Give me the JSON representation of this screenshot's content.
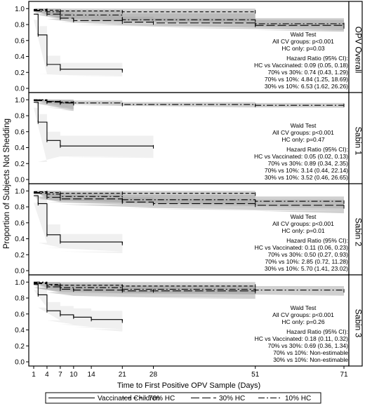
{
  "chart_data": [
    {
      "type": "line",
      "strip_label": "OPV Overall",
      "wald_text": [
        "Wald Test",
        "All CV groups: p<0.001",
        "HC only: p=0.03"
      ],
      "hr_text": [
        "Hazard Ratio (95% CI):",
        "HC vs Vaccinated: 0.09 (0.05, 0.18)",
        "70% vs 30%: 0.74 (0.43, 1.29)",
        "70% vs 10%: 4.84 (1.25, 18.69)",
        "30% vs 10%: 6.53 (1.62, 26.26)"
      ],
      "series": [
        {
          "name": "Vaccinated Children",
          "style": "solid",
          "x": [
            1,
            2,
            4,
            7,
            21
          ],
          "y": [
            0.93,
            0.67,
            0.3,
            0.24,
            0.22
          ],
          "band_lower": [
            0.86,
            0.18,
            0.17,
            0.16,
            0.15
          ],
          "band_upper": [
            0.99,
            0.78,
            0.41,
            0.32,
            0.28
          ]
        },
        {
          "name": "70% HC",
          "style": "dash",
          "x": [
            1,
            4,
            7,
            21,
            51
          ],
          "y": [
            0.99,
            0.98,
            0.97,
            0.96,
            0.96
          ],
          "band_lower": [
            0.97,
            0.88,
            0.86,
            0.84,
            0.83
          ],
          "band_upper": [
            1.0,
            1.0,
            1.0,
            1.0,
            1.0
          ]
        },
        {
          "name": "30% HC",
          "style": "longdash",
          "x": [
            1,
            4,
            7,
            10,
            21,
            28,
            51,
            71
          ],
          "y": [
            0.97,
            0.93,
            0.88,
            0.85,
            0.83,
            0.82,
            0.79,
            0.77
          ],
          "band_lower": [
            0.93,
            0.87,
            0.83,
            0.8,
            0.78,
            0.76,
            0.73,
            0.71
          ],
          "band_upper": [
            1.0,
            0.98,
            0.95,
            0.92,
            0.9,
            0.88,
            0.86,
            0.84
          ]
        },
        {
          "name": "10% HC",
          "style": "dashdot",
          "x": [
            1,
            4,
            7,
            21,
            51,
            71
          ],
          "y": [
            0.98,
            0.96,
            0.92,
            0.86,
            0.81,
            0.8
          ],
          "band_lower": [
            0.96,
            0.88,
            0.86,
            0.8,
            0.75,
            0.73
          ],
          "band_upper": [
            1.0,
            1.0,
            0.98,
            0.94,
            0.88,
            0.86
          ]
        }
      ]
    },
    {
      "type": "line",
      "strip_label": "Sabin 1",
      "wald_text": [
        "Wald Test",
        "All CV groups: p<0.001",
        "HC only: p=0.47"
      ],
      "hr_text": [
        "Hazard Ratio (95% CI):",
        "HC vs Vaccinated: 0.05 (0.02, 0.13)",
        "70% vs 30%: 0.89 (0.34, 2.35)",
        "70% vs 10%: 3.14 (0.44, 22.14)",
        "30% vs 10%: 3.52 (0.46, 26.65)"
      ],
      "series": [
        {
          "name": "Vaccinated Children",
          "style": "solid",
          "x": [
            1,
            2,
            4,
            7,
            28
          ],
          "y": [
            0.97,
            0.72,
            0.49,
            0.42,
            0.41
          ],
          "band_lower": [
            0.9,
            0.22,
            0.29,
            0.28,
            0.27
          ],
          "band_upper": [
            1.0,
            0.82,
            0.6,
            0.55,
            0.52
          ]
        },
        {
          "name": "70% HC",
          "style": "dash",
          "x": [
            1,
            4,
            7,
            10
          ],
          "y": [
            1.0,
            0.98,
            0.97,
            0.96
          ],
          "band_lower": [
            0.98,
            0.92,
            0.9,
            0.88
          ],
          "band_upper": [
            1.0,
            1.0,
            1.0,
            1.0
          ]
        },
        {
          "name": "30% HC",
          "style": "longdash",
          "x": [
            1,
            4,
            7,
            10
          ],
          "y": [
            0.99,
            0.97,
            0.96,
            0.95
          ],
          "band_lower": [
            0.96,
            0.9,
            0.88,
            0.86
          ],
          "band_upper": [
            1.0,
            1.0,
            1.0,
            1.0
          ]
        },
        {
          "name": "10% HC",
          "style": "dashdot",
          "x": [
            1,
            4,
            7,
            21,
            51,
            71
          ],
          "y": [
            1.0,
            0.98,
            0.96,
            0.94,
            0.93,
            0.93
          ],
          "band_lower": [
            0.98,
            0.95,
            0.93,
            0.91,
            0.9,
            0.9
          ],
          "band_upper": [
            1.0,
            1.0,
            0.99,
            0.97,
            0.96,
            0.96
          ]
        }
      ]
    },
    {
      "type": "line",
      "strip_label": "Sabin 2",
      "wald_text": [
        "Wald Test",
        "All CV groups: p<0.001",
        "HC only: p=0.01"
      ],
      "hr_text": [
        "Hazard Ratio (95% CI):",
        "HC vs Vaccinated: 0.11 (0.06, 0.23)",
        "70% vs 30%: 0.50 (0.27, 0.93)",
        "70% vs 10%: 2.85 (0.72, 11.28)",
        "30% vs 10%: 5.70 (1.41, 23.02)"
      ],
      "series": [
        {
          "name": "Vaccinated Children",
          "style": "solid",
          "x": [
            1,
            2,
            4,
            7,
            21
          ],
          "y": [
            0.94,
            0.84,
            0.45,
            0.36,
            0.34
          ],
          "band_lower": [
            0.85,
            0.35,
            0.29,
            0.24,
            0.22
          ],
          "band_upper": [
            0.99,
            0.9,
            0.58,
            0.46,
            0.44
          ]
        },
        {
          "name": "70% HC",
          "style": "dash",
          "x": [
            1,
            4,
            7,
            21,
            51
          ],
          "y": [
            0.99,
            0.98,
            0.97,
            0.97,
            0.96
          ],
          "band_lower": [
            0.9,
            0.88,
            0.86,
            0.85,
            0.84
          ],
          "band_upper": [
            1.0,
            1.0,
            1.0,
            1.0,
            1.0
          ]
        },
        {
          "name": "30% HC",
          "style": "longdash",
          "x": [
            1,
            4,
            7,
            21,
            28,
            51,
            71
          ],
          "y": [
            0.97,
            0.92,
            0.9,
            0.86,
            0.84,
            0.82,
            0.8
          ],
          "band_lower": [
            0.92,
            0.86,
            0.83,
            0.79,
            0.77,
            0.75,
            0.72
          ],
          "band_upper": [
            1.0,
            0.97,
            0.95,
            0.92,
            0.9,
            0.89,
            0.87
          ]
        },
        {
          "name": "10% HC",
          "style": "dashdot",
          "x": [
            1,
            4,
            7,
            21,
            51,
            71
          ],
          "y": [
            0.98,
            0.96,
            0.93,
            0.89,
            0.87,
            0.86
          ],
          "band_lower": [
            0.93,
            0.89,
            0.86,
            0.82,
            0.8,
            0.78
          ],
          "band_upper": [
            1.0,
            1.0,
            0.98,
            0.95,
            0.93,
            0.92
          ]
        }
      ]
    },
    {
      "type": "line",
      "strip_label": "Sabin 3",
      "wald_text": [
        "Wald Test",
        "All CV groups: p<0.001",
        "HC only: p=0.26"
      ],
      "hr_text": [
        "Hazard Ratio (95% CI):",
        "HC vs Vaccinated: 0.18 (0.11, 0.32)",
        "70% vs 30%: 0.69 (0.36, 1.34)",
        "70% vs 10%: Non-estimable",
        "30% vs 10%: Non-estimable"
      ],
      "series": [
        {
          "name": "Vaccinated Children",
          "style": "solid",
          "x": [
            1,
            2,
            4,
            7,
            10,
            14,
            21
          ],
          "y": [
            0.97,
            0.84,
            0.64,
            0.59,
            0.56,
            0.53,
            0.51
          ],
          "band_lower": [
            0.9,
            0.68,
            0.52,
            0.47,
            0.44,
            0.41,
            0.38
          ],
          "band_upper": [
            1.0,
            0.92,
            0.75,
            0.7,
            0.67,
            0.64,
            0.62
          ]
        },
        {
          "name": "70% HC",
          "style": "dash",
          "x": [
            1,
            4,
            7,
            21,
            51
          ],
          "y": [
            0.99,
            0.97,
            0.96,
            0.95,
            0.95
          ],
          "band_lower": [
            0.93,
            0.88,
            0.86,
            0.85,
            0.85
          ],
          "band_upper": [
            1.0,
            1.0,
            1.0,
            1.0,
            1.0
          ]
        },
        {
          "name": "30% HC",
          "style": "longdash",
          "x": [
            1,
            4,
            7,
            10,
            21,
            28,
            51
          ],
          "y": [
            0.98,
            0.94,
            0.91,
            0.9,
            0.89,
            0.89,
            0.88
          ],
          "band_lower": [
            0.93,
            0.87,
            0.83,
            0.82,
            0.81,
            0.8,
            0.79
          ],
          "band_upper": [
            1.0,
            0.99,
            0.97,
            0.96,
            0.95,
            0.95,
            0.95
          ]
        },
        {
          "name": "10% HC",
          "style": "dashdot",
          "x": [
            1,
            4,
            7,
            21,
            51,
            71
          ],
          "y": [
            1.0,
            0.96,
            0.93,
            0.91,
            0.9,
            0.89
          ],
          "band_lower": [
            0.96,
            0.9,
            0.87,
            0.85,
            0.84,
            0.83
          ],
          "band_upper": [
            1.0,
            1.0,
            0.98,
            0.96,
            0.95,
            0.95
          ]
        }
      ]
    }
  ],
  "axes": {
    "x_ticks": [
      1,
      4,
      7,
      10,
      14,
      21,
      28,
      51,
      71
    ],
    "x_tick_labels": [
      "1",
      "4",
      "7",
      "10",
      "14",
      "21",
      "28",
      "51",
      "71"
    ],
    "xlim": [
      0,
      72
    ],
    "y_ticks": [
      0.0,
      0.2,
      0.4,
      0.6,
      0.8,
      1.0
    ],
    "y_tick_labels": [
      "0.0",
      "0.2",
      "0.4",
      "0.6",
      "0.8",
      "1.0"
    ],
    "ylim": [
      0,
      1.02
    ],
    "xlabel": "Time to First Positive OPV Sample (Days)",
    "ylabel": "Proportion of Subjects Not Shedding"
  },
  "legend": {
    "placement": "bottom",
    "items": [
      {
        "label": "Vaccinated Children",
        "style": "solid"
      },
      {
        "label": "70% HC",
        "style": "dash"
      },
      {
        "label": "30% HC",
        "style": "longdash"
      },
      {
        "label": "10% HC",
        "style": "dashdot"
      }
    ]
  },
  "colors": {
    "band_vaccinated": "#eeeeee",
    "band_hc": "#aaaaaa",
    "line": "#000000"
  }
}
